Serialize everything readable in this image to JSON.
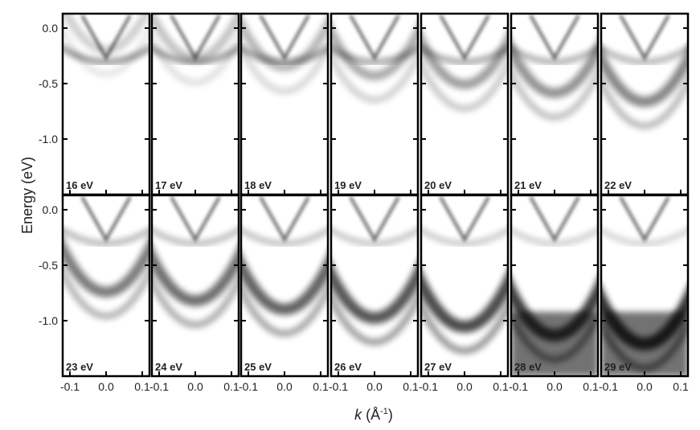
{
  "chart_data": {
    "type": "heatmap",
    "y_label": "Energy (eV)",
    "x_label": [
      "k",
      " (Å",
      "-1",
      ")"
    ],
    "panels": [
      "16 eV",
      "17 eV",
      "18 eV",
      "19 eV",
      "20 eV",
      "21 eV",
      "22 eV",
      "23 eV",
      "24 eV",
      "25 eV",
      "26 eV",
      "27 eV",
      "28 eV",
      "29 eV"
    ],
    "columns": 7,
    "ylim": [
      -1.5,
      0.13
    ],
    "yticks": [
      {
        "value": 0.0,
        "label": "0.0"
      },
      -0.5,
      {
        "value": -1.0,
        "label": "-1.0"
      }
    ],
    "xlim": [
      -0.12,
      0.12
    ],
    "xticks": [
      -0.1,
      {
        "value": 0.0,
        "label": "0.0"
      },
      0.1
    ],
    "colormap": [
      "#ffffff",
      "#000000"
    ]
  }
}
